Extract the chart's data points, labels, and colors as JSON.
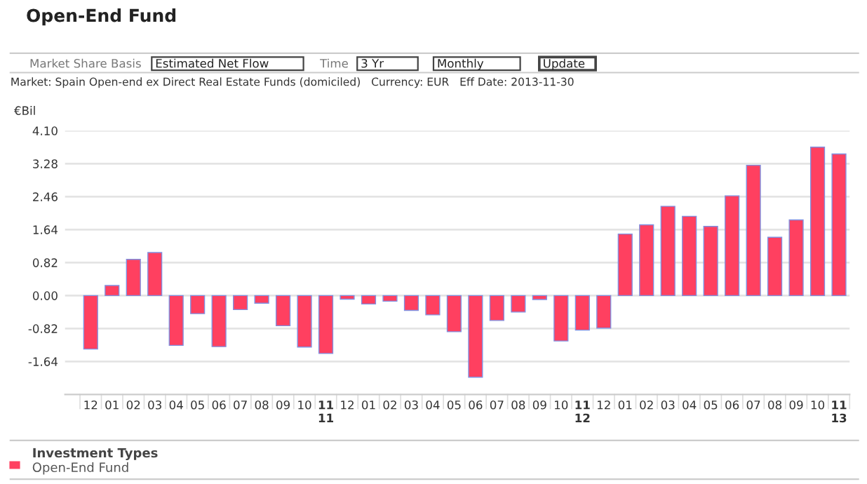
{
  "chart_data": {
    "type": "bar",
    "title": "Open-End Fund",
    "subtitle": "Market: Spain Open-end ex Direct Real Estate Funds (domiciled)   Currency: EUR   Eff Date: 2013-11-30",
    "annotations": [
      "Market Share Basis",
      "Estimated Net Flow",
      "Time",
      "3 Yr",
      "Monthly",
      "Update"
    ],
    "ylabel": "€Bil",
    "legend_title": "Investment Types",
    "categories": [
      "12",
      "01",
      "02",
      "03",
      "04",
      "05",
      "06",
      "07",
      "08",
      "09",
      "10",
      "11\n11",
      "12",
      "01",
      "02",
      "03",
      "04",
      "05",
      "06",
      "07",
      "08",
      "09",
      "10",
      "11\n12",
      "12",
      "01",
      "02",
      "03",
      "04",
      "05",
      "06",
      "07",
      "08",
      "09",
      "10",
      "11\n13"
    ],
    "series": [
      {
        "name": "Open-End Fund",
        "color": "#ff4060",
        "values": [
          -1.33,
          0.25,
          0.9,
          1.07,
          -1.24,
          -0.45,
          -1.27,
          -0.35,
          -0.19,
          -0.75,
          -1.28,
          -1.44,
          -0.09,
          -0.21,
          -0.14,
          -0.37,
          -0.48,
          -0.9,
          -2.03,
          -0.62,
          -0.41,
          -0.1,
          -1.13,
          -0.86,
          -0.81,
          1.53,
          1.76,
          2.22,
          1.97,
          1.72,
          2.48,
          3.24,
          1.45,
          1.88,
          3.69,
          3.52
        ]
      }
    ],
    "ylim": [
      -2.46,
      4.1
    ],
    "yticks": [
      {
        "value": -1.64,
        "label": "-1.64"
      },
      {
        "value": -0.82,
        "label": "-0.82"
      },
      {
        "value": 0,
        "label": "0.00"
      },
      {
        "value": 0.82,
        "label": "0.82"
      },
      {
        "value": 1.64,
        "label": "1.64"
      },
      {
        "value": 2.46,
        "label": "2.46"
      },
      {
        "value": 3.28,
        "label": "3.28"
      },
      {
        "value": 4.1,
        "label": "4.10"
      }
    ],
    "grid": "y",
    "legend": "bottom left"
  }
}
